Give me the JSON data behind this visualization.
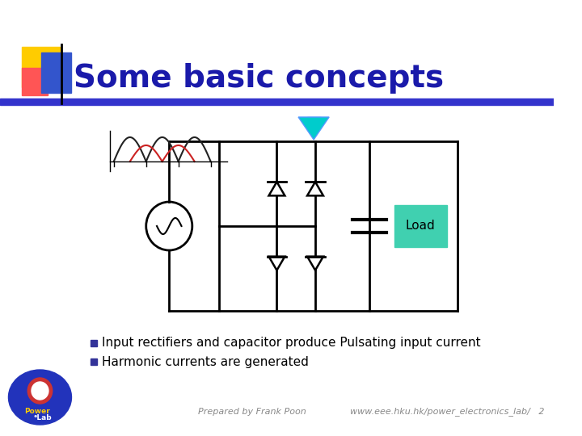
{
  "title": "Some basic concepts",
  "title_color": "#1a1aaa",
  "bg_color": "#ffffff",
  "bullet1": "Input rectifiers and capacitor produce Pulsating input current",
  "bullet2": "Harmonic currents are generated",
  "footer_left": "Prepared by Frank Poon",
  "footer_right": "www.eee.hku.hk/power_electronics_lab/   2",
  "load_color": "#40d0b0",
  "load_text": "Load",
  "arrow_body_color": "#5599ff",
  "arrow_head_color": "#00cccc",
  "header_bar_color": "#3333cc",
  "decoration_yellow": "#ffcc00",
  "decoration_red": "#ff5555",
  "decoration_blue": "#3355cc",
  "bullet_color": "#333399",
  "footer_color": "#888888",
  "wave_black": "#222222",
  "wave_red": "#cc2222",
  "diode_color": "#000000",
  "circuit_color": "#000000"
}
